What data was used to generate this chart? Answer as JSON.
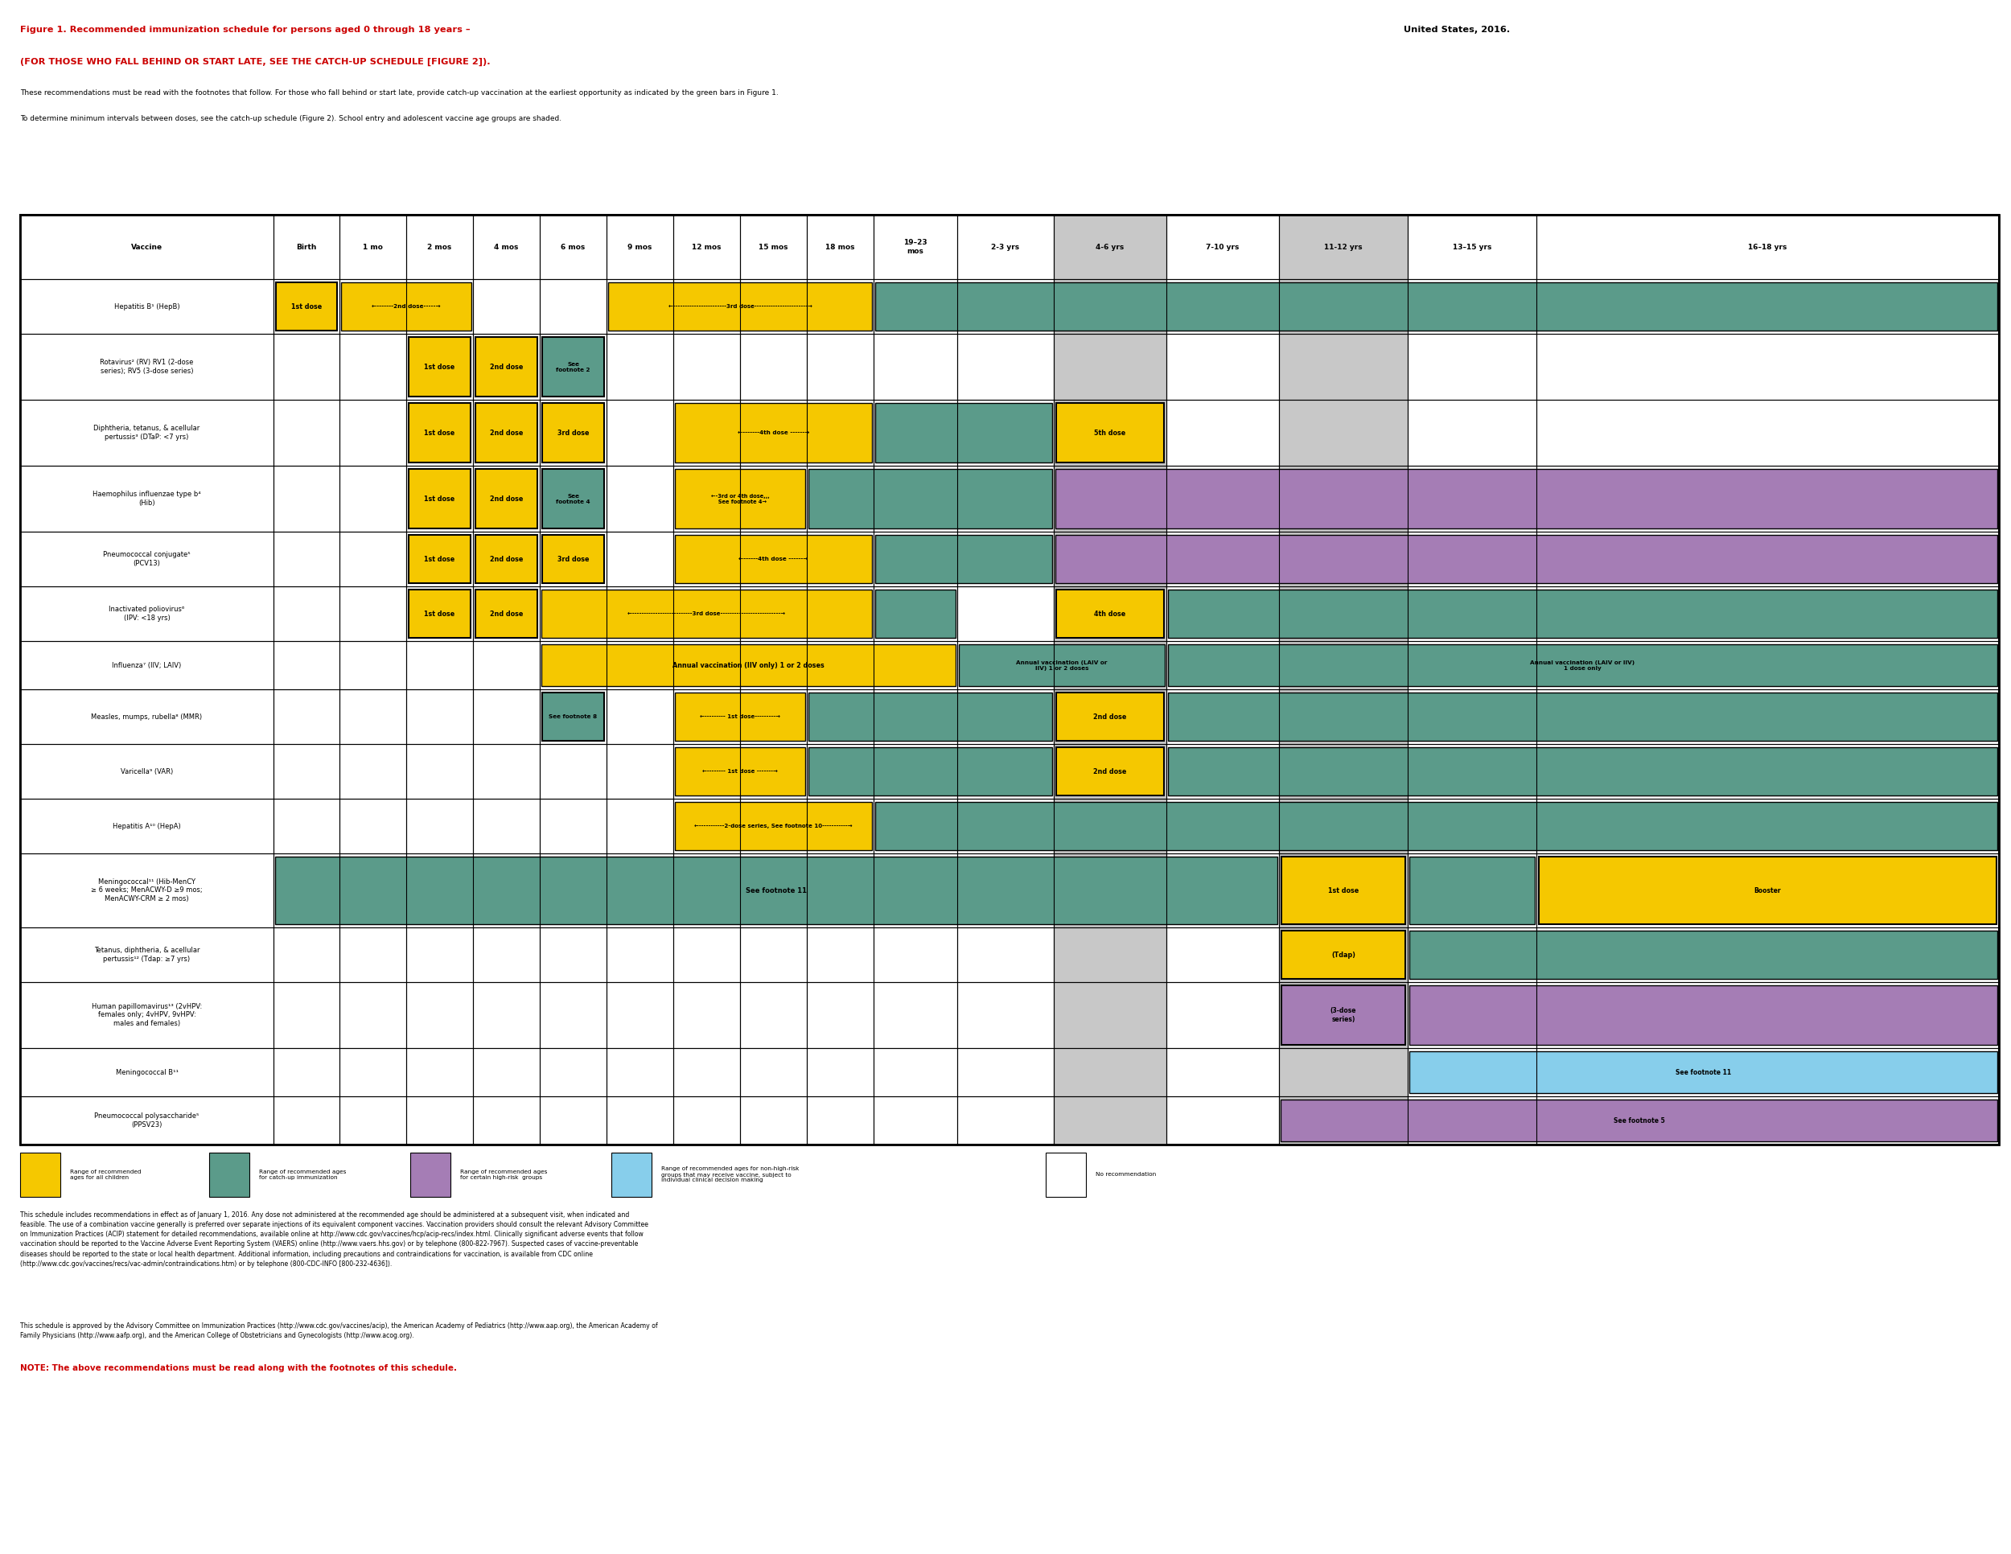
{
  "title_line1_red": "Figure 1. Recommended immunization schedule for persons aged 0 through 18 years – ",
  "title_line1_black": "United States, 2016.",
  "title_line2": "(FOR THOSE WHO FALL BEHIND OR START LATE, SEE THE CATCH-UP SCHEDULE [FIGURE 2]).",
  "subtitle1": "These recommendations must be read with the footnotes that follow. For those who fall behind or start late, provide catch-up vaccination at the earliest opportunity as indicated by the green bars in Figure 1.",
  "subtitle2": "To determine minimum intervals between doses, see the catch-up schedule (Figure 2). School entry and adolescent vaccine age groups are shaded.",
  "col_headers": [
    "Vaccine",
    "Birth",
    "1 mo",
    "2 mos",
    "4 mos",
    "6 mos",
    "9 mos",
    "12 mos",
    "15 mos",
    "18 mos",
    "19–23\nmos",
    "2-3 yrs",
    "4-6 yrs",
    "7-10 yrs",
    "11-12 yrs",
    "13–15 yrs",
    "16–18 yrs"
  ],
  "vaccines": [
    "Hepatitis B¹ (HepB)",
    "Rotavirus² (RV) RV1 (2-dose\nseries); RV5 (3-dose series)",
    "Diphtheria, tetanus, & acellular\npertussis³ (DTaP: <7 yrs)",
    "Haemophilus influenzae type b⁴\n(Hib)",
    "Pneumococcal conjugate⁵\n(PCV13)",
    "Inactivated poliovirus⁶\n(IPV: <18 yrs)",
    "Influenza⁷ (IIV; LAIV)",
    "Measles, mumps, rubella⁸ (MMR)",
    "Varicella⁹ (VAR)",
    "Hepatitis A¹⁰ (HepA)",
    "Meningococcal¹¹ (Hib-MenCY\n≥ 6 weeks; MenACWY-D ≥9 mos;\nMenACWY-CRM ≥ 2 mos)",
    "Tetanus, diphtheria, & acellular\npertussis¹² (Tdap: ≥7 yrs)",
    "Human papillomavirus¹³ (2vHPV:\nfemales only; 4vHPV, 9vHPV:\nmales and females)",
    "Meningococcal B¹¹",
    "Pneumococcal polysaccharide⁵\n(PPSV23)"
  ],
  "colors": {
    "yellow": "#F5C800",
    "green": "#5B9B8A",
    "purple": "#A57DB5",
    "light_blue": "#87CEEB",
    "light_gray": "#C8C8C8",
    "white": "#FFFFFF",
    "border": "#000000",
    "red": "#CC0000"
  },
  "footer_text": "This schedule includes recommendations in effect as of January 1, 2016. Any dose not administered at the recommended age should be administered at a subsequent visit, when indicated and\nfeasible. The use of a combination vaccine generally is preferred over separate injections of its equivalent component vaccines. Vaccination providers should consult the relevant Advisory Committee\non Immunization Practices (ACIP) statement for detailed recommendations, available online at http://www.cdc.gov/vaccines/hcp/acip-recs/index.html. Clinically significant adverse events that follow\nvaccination should be reported to the Vaccine Adverse Event Reporting System (VAERS) online (http://www.vaers.hhs.gov) or by telephone (800-822-7967). Suspected cases of vaccine-preventable\ndiseases should be reported to the state or local health department. Additional information, including precautions and contraindications for vaccination, is available from CDC online\n(http://www.cdc.gov/vaccines/recs/vac-admin/contraindications.htm) or by telephone (800-CDC-INFO [800-232-4636]).",
  "footer_text2": "This schedule is approved by the Advisory Committee on Immunization Practices (http://www.cdc.gov/vaccines/acip), the American Academy of Pediatrics (http://www.aap.org), the American Academy of\nFamily Physicians (http://www.aafp.org), and the American College of Obstetricians and Gynecologists (http://www.acog.org).",
  "note": "NOTE: The above recommendations must be read along with the footnotes of this schedule."
}
